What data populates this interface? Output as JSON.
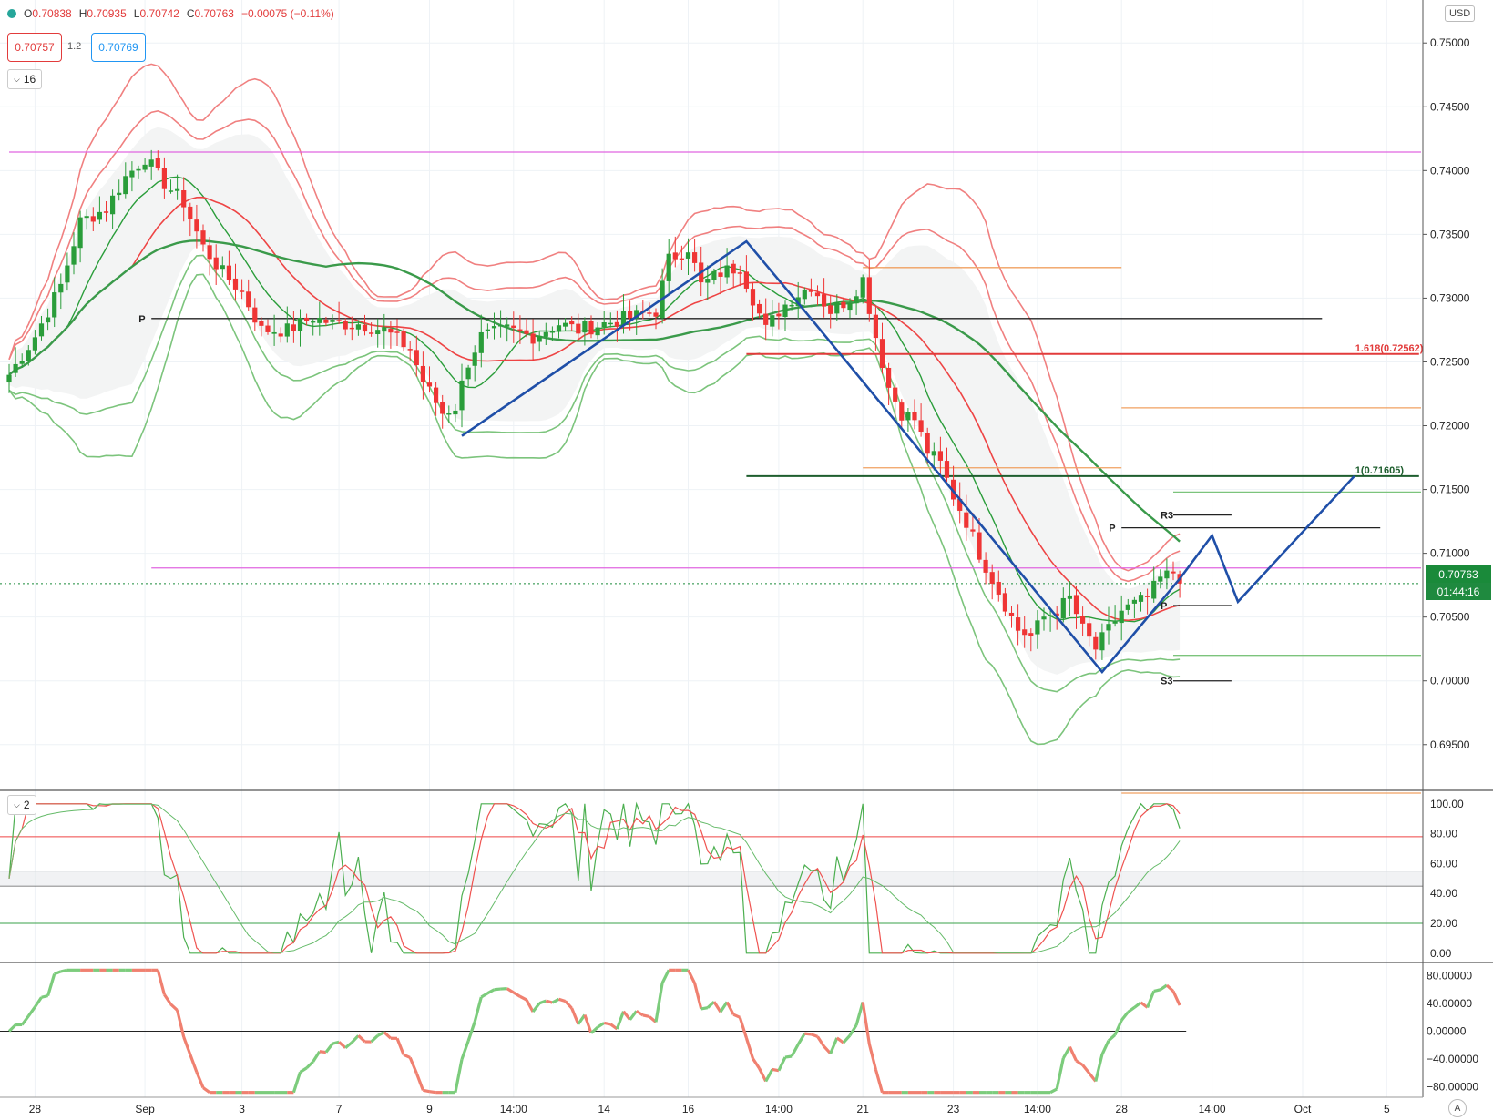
{
  "legend": {
    "open_label": "O",
    "open": "0.70838",
    "high_label": "H",
    "high": "0.70935",
    "low_label": "L",
    "low": "0.70742",
    "close_label": "C",
    "close": "0.70763",
    "change": "−0.00075 (−0.11%)"
  },
  "trade": {
    "bid": "0.70757",
    "spread": "1.2",
    "ask": "0.70769"
  },
  "panes": {
    "main_count": "16",
    "osc_count": "2"
  },
  "currency": "USD",
  "auto_label": "A",
  "last_price": "0.70763",
  "countdown": "01:44:16",
  "colors": {
    "up": "#2a9d3a",
    "down": "#ef3535",
    "bollinger": "#f08080",
    "green_band": "#7cc47c",
    "magenta": "#e066e0",
    "orange": "#f0a060",
    "pattern": "#1f4fa8",
    "darkgreen": "#1e5e2e"
  },
  "chart_data": [
    {
      "type": "candlestick",
      "title": "",
      "y_ticks": [
        "0.69500",
        "0.70000",
        "0.70500",
        "0.71000",
        "0.71500",
        "0.72000",
        "0.72500",
        "0.73000",
        "0.73500",
        "0.74000",
        "0.74500",
        "0.75000"
      ],
      "y_tick_values": [
        0.695,
        0.7,
        0.705,
        0.71,
        0.715,
        0.72,
        0.725,
        0.73,
        0.735,
        0.74,
        0.745,
        0.75
      ],
      "ylim": [
        0.6917,
        0.7518
      ],
      "x_labels": [
        "28",
        "Sep",
        "3",
        "7",
        "9",
        "14:00",
        "14",
        "16",
        "14:00",
        "21",
        "23",
        "14:00",
        "28",
        "14:00",
        "Oct",
        "5"
      ],
      "x_label_pos": [
        4,
        21,
        36,
        51,
        65,
        78,
        92,
        105,
        119,
        132,
        146,
        159,
        172,
        186,
        200,
        213
      ],
      "bar_count": 220,
      "anchors": [
        [
          0,
          0.724
        ],
        [
          4,
          0.727
        ],
        [
          8,
          0.731
        ],
        [
          11,
          0.736
        ],
        [
          15,
          0.737
        ],
        [
          18,
          0.7395
        ],
        [
          21,
          0.741
        ],
        [
          24,
          0.739
        ],
        [
          27,
          0.7375
        ],
        [
          30,
          0.734
        ],
        [
          33,
          0.732
        ],
        [
          36,
          0.7305
        ],
        [
          39,
          0.7275
        ],
        [
          43,
          0.7275
        ],
        [
          47,
          0.7285
        ],
        [
          50,
          0.728
        ],
        [
          54,
          0.728
        ],
        [
          58,
          0.7275
        ],
        [
          62,
          0.726
        ],
        [
          64,
          0.7235
        ],
        [
          67,
          0.721
        ],
        [
          69,
          0.7215
        ],
        [
          71,
          0.725
        ],
        [
          73,
          0.727
        ],
        [
          77,
          0.7275
        ],
        [
          81,
          0.727
        ],
        [
          85,
          0.728
        ],
        [
          88,
          0.7275
        ],
        [
          92,
          0.728
        ],
        [
          96,
          0.7285
        ],
        [
          100,
          0.729
        ],
        [
          102,
          0.733
        ],
        [
          105,
          0.734
        ],
        [
          107,
          0.731
        ],
        [
          110,
          0.732
        ],
        [
          113,
          0.7325
        ],
        [
          115,
          0.73
        ],
        [
          117,
          0.7275
        ],
        [
          119,
          0.729
        ],
        [
          121,
          0.73
        ],
        [
          124,
          0.731
        ],
        [
          127,
          0.729
        ],
        [
          130,
          0.73
        ],
        [
          132,
          0.7315
        ],
        [
          134,
          0.727
        ],
        [
          136,
          0.723
        ],
        [
          138,
          0.721
        ],
        [
          140,
          0.7205
        ],
        [
          142,
          0.718
        ],
        [
          144,
          0.717
        ],
        [
          146,
          0.7145
        ],
        [
          148,
          0.7125
        ],
        [
          150,
          0.71
        ],
        [
          152,
          0.708
        ],
        [
          154,
          0.706
        ],
        [
          156,
          0.704
        ],
        [
          158,
          0.7035
        ],
        [
          160,
          0.705
        ],
        [
          162,
          0.7055
        ],
        [
          164,
          0.7065
        ],
        [
          166,
          0.704
        ],
        [
          168,
          0.7025
        ],
        [
          170,
          0.704
        ],
        [
          172,
          0.7055
        ],
        [
          174,
          0.706
        ],
        [
          176,
          0.7065
        ],
        [
          178,
          0.708
        ],
        [
          180,
          0.7085
        ],
        [
          181,
          0.7076
        ]
      ],
      "price_lines": [
        {
          "name": "magenta-upper",
          "color": "#e066e0",
          "y": 0.74145,
          "x_from": 0,
          "x_to": 220
        },
        {
          "name": "magenta-lower",
          "color": "#e066e0",
          "y": 0.70885,
          "x_from": 22,
          "x_to": 220
        },
        {
          "name": "pivot-weekly",
          "color": "#222222",
          "y": 0.7284,
          "x_from": 22,
          "x_to": 203,
          "label": "P"
        },
        {
          "name": "fib-1618",
          "color": "#e23b3b",
          "y": 0.72562,
          "x_from": 114,
          "x_to": 218,
          "label": "1.618(0.72562)"
        },
        {
          "name": "fib-1",
          "color": "#1e5e2e",
          "y": 0.71605,
          "x_from": 114,
          "x_to": 218,
          "label": "1(0.71605)"
        },
        {
          "name": "orange-1",
          "color": "#f0a060",
          "y": 0.7324,
          "x_from": 132,
          "x_to": 172
        },
        {
          "name": "orange-2",
          "color": "#f0a060",
          "y": 0.7214,
          "x_from": 172,
          "x_to": 220
        },
        {
          "name": "orange-3",
          "color": "#f0a060",
          "y": 0.7167,
          "x_from": 132,
          "x_to": 172
        },
        {
          "name": "orange-4",
          "color": "#f0a060",
          "y": 0.6912,
          "x_from": 172,
          "x_to": 220
        },
        {
          "name": "green-1",
          "color": "#7cc47c",
          "y": 0.7148,
          "x_from": 180,
          "x_to": 220
        },
        {
          "name": "green-2",
          "color": "#7cc47c",
          "y": 0.702,
          "x_from": 180,
          "x_to": 220
        },
        {
          "name": "r3",
          "color": "#222222",
          "y": 0.713,
          "x_from": 180,
          "x_to": 189,
          "label": "R3"
        },
        {
          "name": "pivot-daily",
          "color": "#222222",
          "y": 0.712,
          "x_from": 172,
          "x_to": 212,
          "label": "P"
        },
        {
          "name": "pivot-daily-2",
          "color": "#222222",
          "y": 0.7059,
          "x_from": 180,
          "x_to": 189,
          "label": "P"
        },
        {
          "name": "s3",
          "color": "#222222",
          "y": 0.7,
          "x_from": 180,
          "x_to": 189,
          "label": "S3"
        }
      ],
      "pattern": [
        [
          70,
          0.7192
        ],
        [
          114,
          0.73445
        ],
        [
          123,
          0.729
        ],
        [
          169,
          0.7007
        ],
        [
          181,
          0.708
        ],
        [
          186,
          0.7114
        ],
        [
          190,
          0.7062
        ],
        [
          208,
          0.71605
        ]
      ]
    },
    {
      "type": "line",
      "name": "stochastic",
      "y_ticks": [
        "0.00",
        "20.00",
        "40.00",
        "60.00",
        "80.00",
        "100.00"
      ],
      "y_tick_values": [
        0,
        20,
        40,
        60,
        80,
        100
      ],
      "ylim": [
        -5,
        106
      ],
      "levels": [
        20,
        45,
        55,
        78
      ]
    },
    {
      "type": "line",
      "name": "momentum",
      "y_ticks": [
        "−80.00000",
        "−40.00000",
        "0.00000",
        "40.00000",
        "80.00000"
      ],
      "y_tick_values": [
        -80,
        -40,
        0,
        40,
        80
      ],
      "ylim": [
        -95,
        95
      ]
    }
  ]
}
